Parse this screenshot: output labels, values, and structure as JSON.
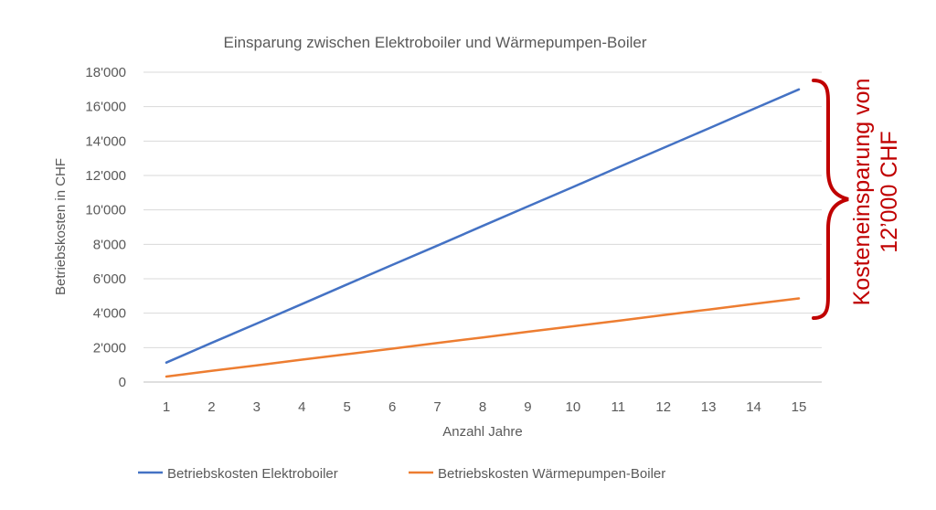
{
  "chart_data": {
    "type": "line",
    "title": "Einsparung zwischen Elektroboiler und Wärmepumpen-Boiler",
    "xlabel": "Anzahl Jahre",
    "ylabel": "Betriebskosten in CHF",
    "x": [
      1,
      2,
      3,
      4,
      5,
      6,
      7,
      8,
      9,
      10,
      11,
      12,
      13,
      14,
      15
    ],
    "ylim": [
      0,
      18000
    ],
    "yticks": [
      0,
      2000,
      4000,
      6000,
      8000,
      10000,
      12000,
      14000,
      16000,
      18000
    ],
    "ytick_labels": [
      "0",
      "2'000",
      "4'000",
      "6'000",
      "8'000",
      "10'000",
      "12'000",
      "14'000",
      "16'000",
      "18'000"
    ],
    "grid": true,
    "legend_position": "bottom",
    "series": [
      {
        "name": "Betriebskosten Elektroboiler",
        "color": "#4472c4",
        "values": [
          1130,
          2270,
          3400,
          4530,
          5670,
          6800,
          7930,
          9070,
          10200,
          11330,
          12470,
          13600,
          14730,
          15870,
          17000
        ]
      },
      {
        "name": "Betriebskosten Wärmepumpen-Boiler",
        "color": "#ed7d31",
        "values": [
          320,
          650,
          970,
          1300,
          1620,
          1940,
          2270,
          2590,
          2920,
          3240,
          3560,
          3890,
          4210,
          4540,
          4860
        ]
      }
    ],
    "annotation": {
      "line1": "Kosteneinsparung von",
      "line2": "12’000 CHF",
      "color": "#c00000"
    }
  }
}
